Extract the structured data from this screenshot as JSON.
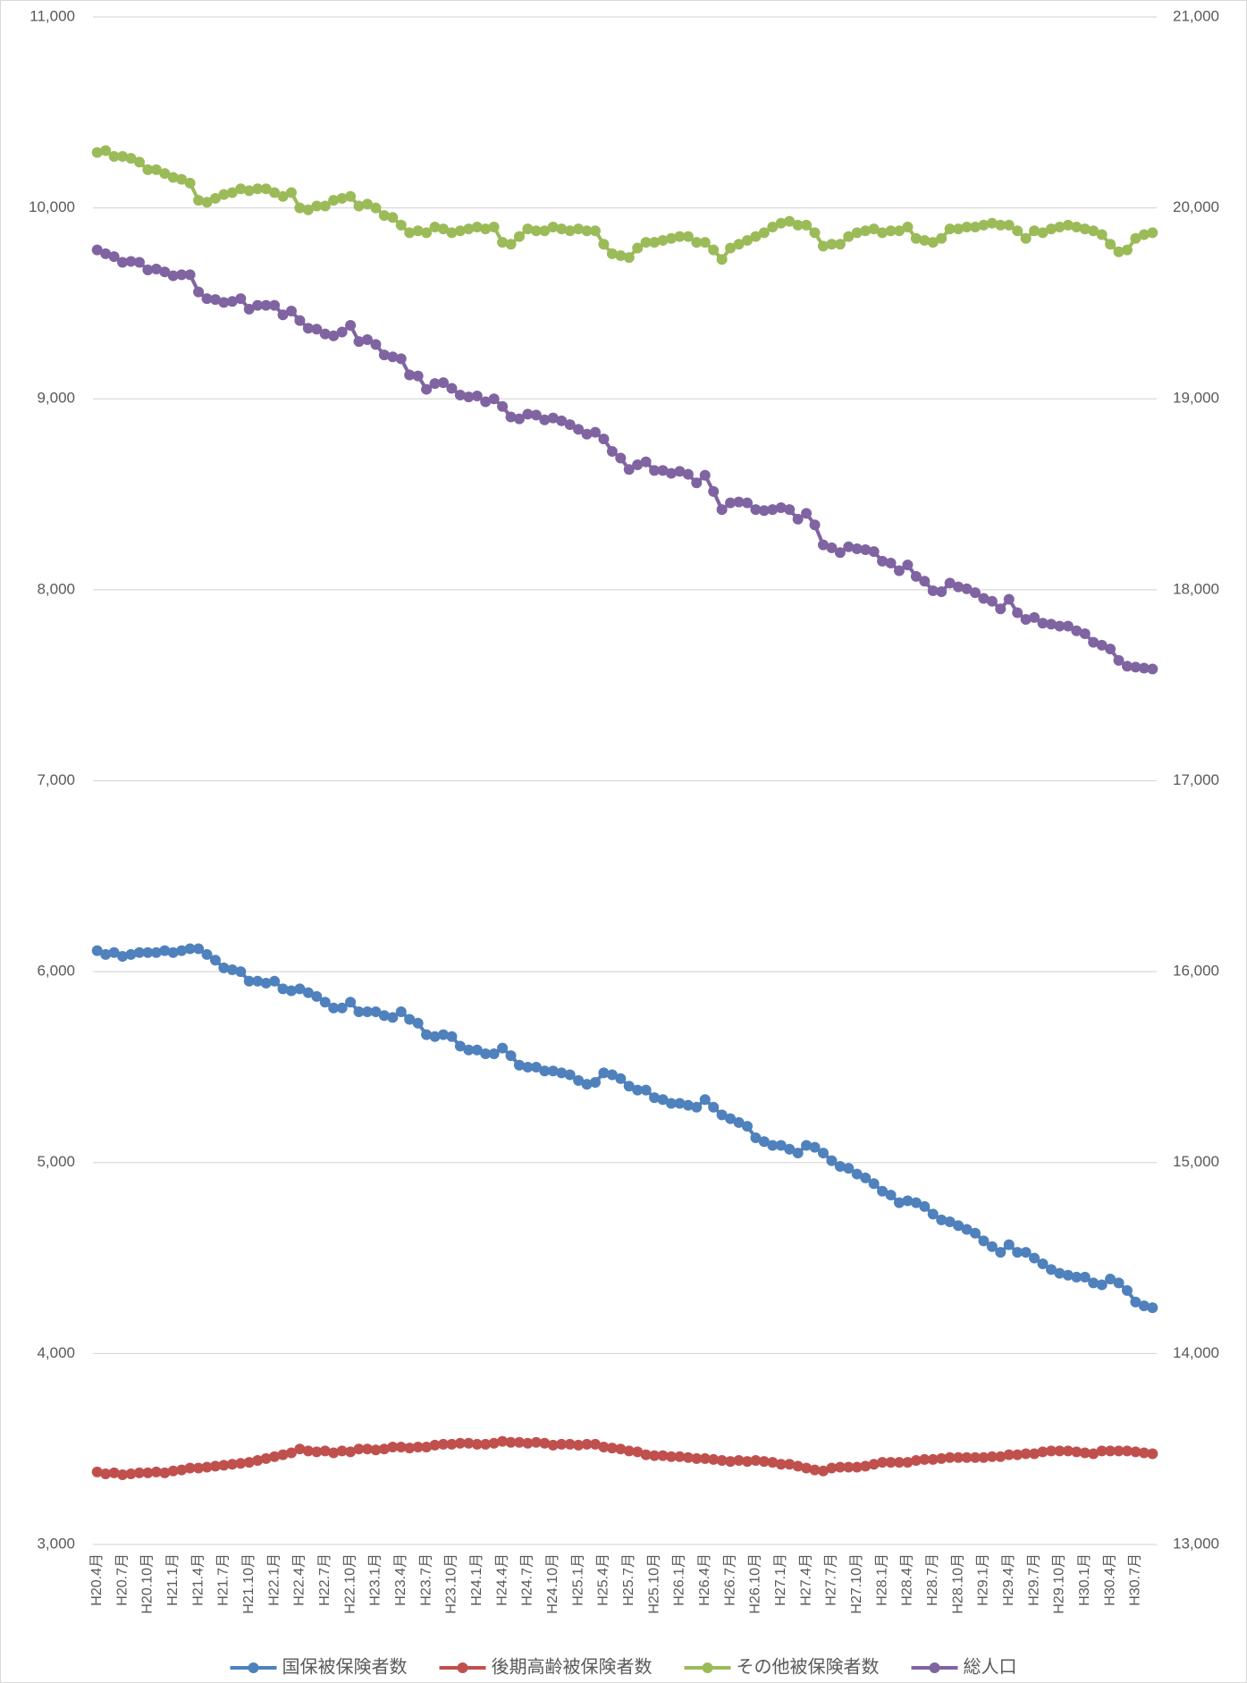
{
  "chart_data": {
    "type": "line",
    "categories": [
      "H20.4月",
      null,
      null,
      "H20.7月",
      null,
      null,
      "H20.10月",
      null,
      null,
      "H21.1月",
      null,
      null,
      "H21.4月",
      null,
      null,
      "H21.7月",
      null,
      null,
      "H21.10月",
      null,
      null,
      "H22.1月",
      null,
      null,
      "H22.4月",
      null,
      null,
      "H22.7月",
      null,
      null,
      "H22.10月",
      null,
      null,
      "H23.1月",
      null,
      null,
      "H23.4月",
      null,
      null,
      "H23.7月",
      null,
      null,
      "H23.10月",
      null,
      null,
      "H24.1月",
      null,
      null,
      "H24.4月",
      null,
      null,
      "H24.7月",
      null,
      null,
      "H24.10月",
      null,
      null,
      "H25.1月",
      null,
      null,
      "H25.4月",
      null,
      null,
      "H25.7月",
      null,
      null,
      "H25.10月",
      null,
      null,
      "H26.1月",
      null,
      null,
      "H26.4月",
      null,
      null,
      "H26.7月",
      null,
      null,
      "H26.10月",
      null,
      null,
      "H27.1月",
      null,
      null,
      "H27.4月",
      null,
      null,
      "H27.7月",
      null,
      null,
      "H27.10月",
      null,
      null,
      "H28.1月",
      null,
      null,
      "H28.4月",
      null,
      null,
      "H28.7月",
      null,
      null,
      "H28.10月",
      null,
      null,
      "H29.1月",
      null,
      null,
      "H29.4月",
      null,
      null,
      "H29.7月",
      null,
      null,
      "H29.10月",
      null,
      null,
      "H30.1月",
      null,
      null,
      "H30.4月",
      null,
      null,
      "H30.7月",
      null,
      null
    ],
    "series": [
      {
        "name": "国保被保険者数",
        "color": "#4F81BD",
        "values": [
          6110,
          6090,
          6100,
          6080,
          6090,
          6100,
          6100,
          6100,
          6110,
          6100,
          6110,
          6120,
          6120,
          6090,
          6060,
          6020,
          6010,
          6000,
          5950,
          5950,
          5940,
          5950,
          5910,
          5900,
          5910,
          5890,
          5870,
          5840,
          5810,
          5810,
          5840,
          5790,
          5790,
          5790,
          5770,
          5760,
          5790,
          5750,
          5730,
          5670,
          5660,
          5670,
          5660,
          5610,
          5590,
          5590,
          5570,
          5570,
          5600,
          5560,
          5510,
          5500,
          5500,
          5480,
          5480,
          5470,
          5460,
          5430,
          5410,
          5420,
          5470,
          5460,
          5440,
          5400,
          5380,
          5380,
          5340,
          5330,
          5310,
          5310,
          5300,
          5290,
          5330,
          5290,
          5250,
          5230,
          5210,
          5190,
          5130,
          5110,
          5090,
          5090,
          5070,
          5050,
          5090,
          5080,
          5050,
          5010,
          4980,
          4970,
          4940,
          4920,
          4890,
          4850,
          4830,
          4790,
          4800,
          4790,
          4770,
          4730,
          4700,
          4690,
          4670,
          4650,
          4630,
          4590,
          4560,
          4530,
          4570,
          4530,
          4530,
          4500,
          4470,
          4440,
          4420,
          4410,
          4400,
          4400,
          4370,
          4360,
          4390,
          4370,
          4330,
          4270,
          4250,
          4240
        ]
      },
      {
        "name": "後期高齢被保険者数",
        "color": "#C0504D",
        "values": [
          3380,
          3370,
          3375,
          3365,
          3370,
          3375,
          3375,
          3380,
          3375,
          3385,
          3390,
          3400,
          3400,
          3405,
          3410,
          3415,
          3420,
          3425,
          3430,
          3440,
          3450,
          3460,
          3470,
          3480,
          3500,
          3490,
          3485,
          3490,
          3480,
          3490,
          3485,
          3500,
          3500,
          3495,
          3500,
          3510,
          3510,
          3505,
          3510,
          3510,
          3520,
          3525,
          3525,
          3530,
          3530,
          3525,
          3525,
          3530,
          3540,
          3535,
          3535,
          3530,
          3535,
          3530,
          3520,
          3525,
          3525,
          3520,
          3525,
          3525,
          3510,
          3505,
          3500,
          3490,
          3485,
          3470,
          3465,
          3465,
          3460,
          3460,
          3455,
          3450,
          3450,
          3445,
          3440,
          3435,
          3440,
          3435,
          3440,
          3435,
          3430,
          3420,
          3420,
          3410,
          3400,
          3390,
          3385,
          3400,
          3405,
          3405,
          3405,
          3410,
          3420,
          3430,
          3430,
          3430,
          3430,
          3440,
          3445,
          3445,
          3450,
          3455,
          3455,
          3455,
          3455,
          3455,
          3460,
          3460,
          3470,
          3470,
          3475,
          3475,
          3485,
          3490,
          3490,
          3490,
          3485,
          3480,
          3475,
          3490,
          3490,
          3490,
          3490,
          3485,
          3480,
          3475
        ]
      },
      {
        "name": "その他被保険者数",
        "color": "#9BBB59",
        "values": [
          10290,
          10300,
          10270,
          10270,
          10260,
          10240,
          10200,
          10200,
          10180,
          10160,
          10150,
          10130,
          10040,
          10030,
          10050,
          10070,
          10080,
          10100,
          10090,
          10100,
          10100,
          10080,
          10060,
          10080,
          10000,
          9990,
          10010,
          10010,
          10040,
          10050,
          10060,
          10010,
          10020,
          10000,
          9960,
          9950,
          9910,
          9870,
          9880,
          9870,
          9900,
          9890,
          9870,
          9880,
          9890,
          9900,
          9890,
          9900,
          9820,
          9810,
          9850,
          9890,
          9880,
          9880,
          9900,
          9890,
          9880,
          9890,
          9880,
          9880,
          9810,
          9760,
          9750,
          9740,
          9790,
          9820,
          9820,
          9830,
          9840,
          9850,
          9850,
          9820,
          9820,
          9780,
          9730,
          9790,
          9810,
          9830,
          9850,
          9870,
          9900,
          9920,
          9930,
          9910,
          9910,
          9870,
          9800,
          9810,
          9810,
          9850,
          9870,
          9880,
          9890,
          9870,
          9880,
          9880,
          9900,
          9840,
          9830,
          9820,
          9840,
          9890,
          9890,
          9900,
          9900,
          9910,
          9920,
          9910,
          9910,
          9880,
          9840,
          9880,
          9870,
          9890,
          9900,
          9910,
          9900,
          9890,
          9880,
          9860,
          9810,
          9770,
          9780,
          9840,
          9860,
          9870
        ]
      },
      {
        "name": "総人口",
        "color": "#8064A2",
        "axis": "y2",
        "values": [
          19780,
          19760,
          19745,
          19715,
          19720,
          19715,
          19675,
          19680,
          19665,
          19645,
          19650,
          19650,
          19560,
          19525,
          19520,
          19505,
          19510,
          19525,
          19470,
          19490,
          19490,
          19490,
          19440,
          19460,
          19410,
          19370,
          19365,
          19340,
          19330,
          19350,
          19385,
          19300,
          19310,
          19285,
          19230,
          19220,
          19210,
          19125,
          19120,
          19050,
          19080,
          19085,
          19055,
          19020,
          19010,
          19015,
          18985,
          19000,
          18960,
          18905,
          18895,
          18920,
          18915,
          18890,
          18900,
          18885,
          18865,
          18840,
          18815,
          18825,
          18790,
          18725,
          18690,
          18630,
          18655,
          18670,
          18625,
          18625,
          18610,
          18620,
          18605,
          18560,
          18600,
          18515,
          18420,
          18455,
          18460,
          18455,
          18420,
          18415,
          18420,
          18430,
          18420,
          18370,
          18400,
          18340,
          18235,
          18220,
          18195,
          18225,
          18215,
          18210,
          18200,
          18150,
          18140,
          18100,
          18130,
          18070,
          18045,
          17995,
          17990,
          18035,
          18015,
          18005,
          17985,
          17955,
          17940,
          17900,
          17950,
          17880,
          17845,
          17855,
          17825,
          17820,
          17810,
          17810,
          17785,
          17770,
          17725,
          17710,
          17690,
          17630,
          17600,
          17595,
          17590,
          17585
        ]
      }
    ],
    "ylim": [
      3000,
      11000
    ],
    "yticks": [
      {
        "value": 3000,
        "label": "3,000"
      },
      {
        "value": 4000,
        "label": "4,000"
      },
      {
        "value": 5000,
        "label": "5,000"
      },
      {
        "value": 6000,
        "label": "6,000"
      },
      {
        "value": 7000,
        "label": "7,000"
      },
      {
        "value": 8000,
        "label": "8,000"
      },
      {
        "value": 9000,
        "label": "9,000"
      },
      {
        "value": 10000,
        "label": "10,000"
      },
      {
        "value": 11000,
        "label": "11,000"
      }
    ],
    "y2lim": [
      13000,
      21000
    ],
    "y2ticks": [
      {
        "value": 13000,
        "label": "13,000"
      },
      {
        "value": 14000,
        "label": "14,000"
      },
      {
        "value": 15000,
        "label": "15,000"
      },
      {
        "value": 16000,
        "label": "16,000"
      },
      {
        "value": 17000,
        "label": "17,000"
      },
      {
        "value": 18000,
        "label": "18,000"
      },
      {
        "value": 19000,
        "label": "19,000"
      },
      {
        "value": 20000,
        "label": "20,000"
      },
      {
        "value": 21000,
        "label": "21,000"
      }
    ],
    "grid": true,
    "legend": "bottom"
  }
}
